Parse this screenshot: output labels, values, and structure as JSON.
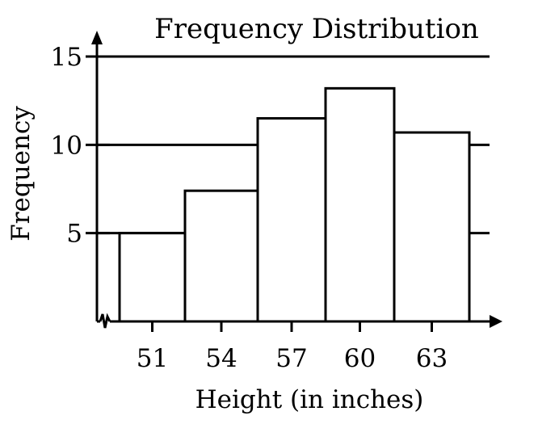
{
  "chart_data": {
    "type": "bar",
    "title": "Frequency Distribution",
    "xlabel": "Height (in inches)",
    "ylabel": "Frequency",
    "categories": [
      "51",
      "54",
      "57",
      "60",
      "63"
    ],
    "values": [
      5,
      7.4,
      11.5,
      13.2,
      10.7
    ],
    "y_ticks": [
      "5",
      "10",
      "15"
    ],
    "ylim": [
      0,
      15
    ],
    "grid": "horizontal lines at 5, 10, 15",
    "axis_break": "zigzag at origin of horizontal axis",
    "bar_fill": "#ffffff",
    "bar_stroke": "#000000"
  }
}
